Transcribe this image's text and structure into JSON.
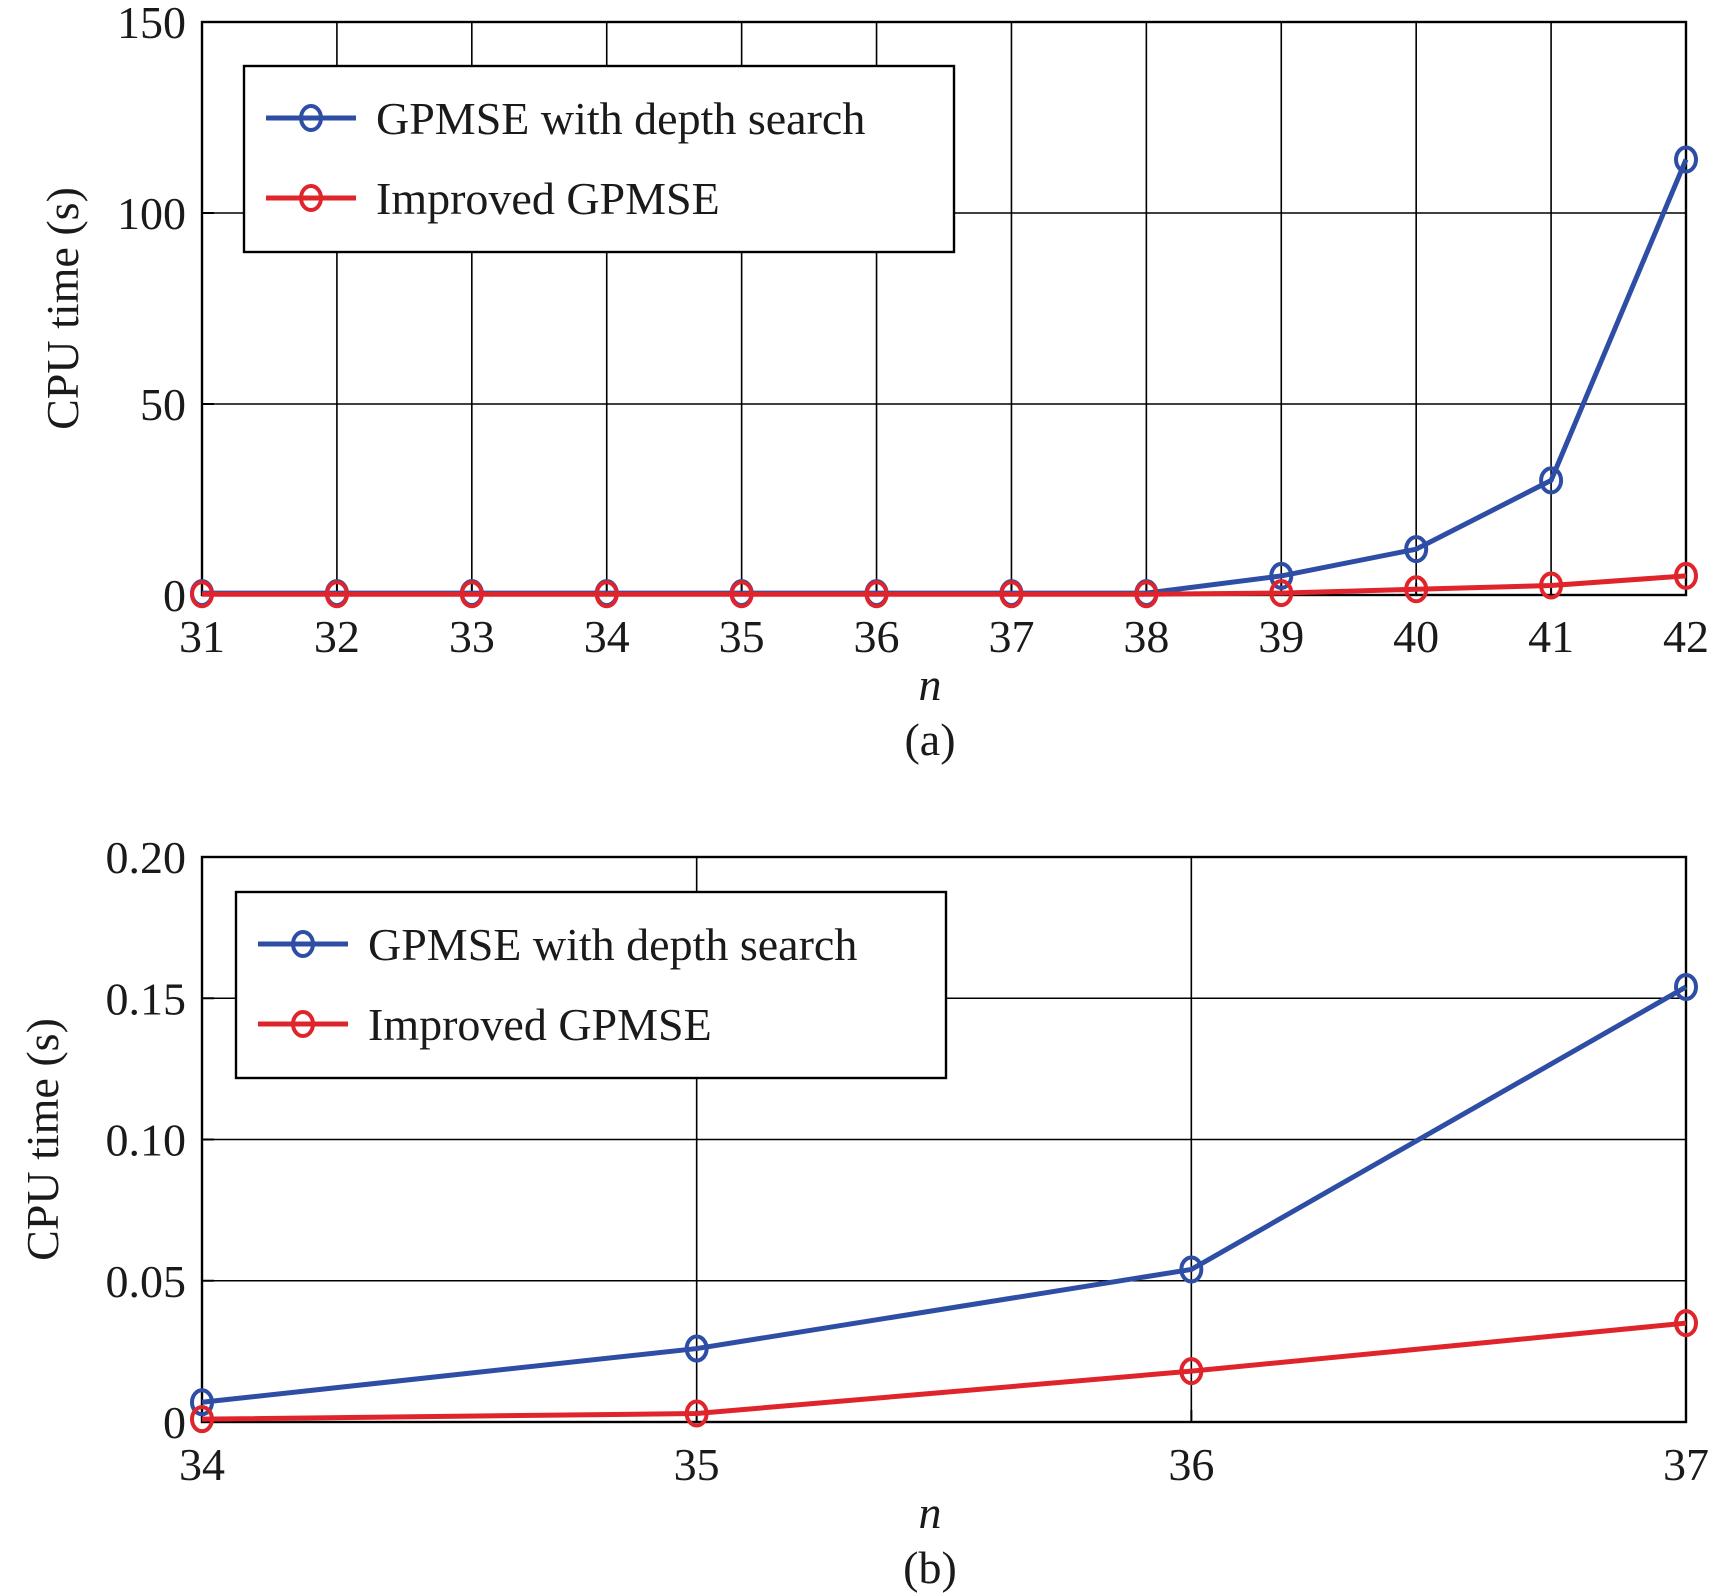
{
  "colors": {
    "series1": "#2e4ea6",
    "series2": "#e0242b",
    "grid": "#000000"
  },
  "chart_data": [
    {
      "type": "line",
      "caption": "(a)",
      "xlabel": "n",
      "ylabel": "CPU time (s)",
      "x": [
        31,
        32,
        33,
        34,
        35,
        36,
        37,
        38,
        39,
        40,
        41,
        42
      ],
      "xlim": [
        31,
        42
      ],
      "ylim": [
        0,
        150
      ],
      "xticks": [
        "31",
        "32",
        "33",
        "34",
        "35",
        "36",
        "37",
        "38",
        "39",
        "40",
        "41",
        "42"
      ],
      "yticks": [
        0,
        50,
        100,
        150
      ],
      "ytick_labels": [
        "0",
        "50",
        "100",
        "150"
      ],
      "grid": true,
      "legend_position": "top-left",
      "series": [
        {
          "name": "GPMSE with depth search",
          "color": "#2e4ea6",
          "values": [
            0.5,
            0.5,
            0.5,
            0.5,
            0.5,
            0.5,
            0.5,
            0.5,
            5,
            12,
            30,
            114
          ]
        },
        {
          "name": "Improved GPMSE",
          "color": "#e0242b",
          "values": [
            0.2,
            0.2,
            0.2,
            0.2,
            0.2,
            0.2,
            0.2,
            0.2,
            0.5,
            1.5,
            2.5,
            5
          ]
        }
      ]
    },
    {
      "type": "line",
      "caption": "(b)",
      "xlabel": "n",
      "ylabel": "CPU time (s)",
      "x": [
        34,
        35,
        36,
        37
      ],
      "xlim": [
        34,
        37
      ],
      "ylim": [
        0,
        0.2
      ],
      "xticks": [
        "34",
        "35",
        "36",
        "37"
      ],
      "yticks": [
        0,
        0.05,
        0.1,
        0.15,
        0.2
      ],
      "ytick_labels": [
        "0",
        "0.05",
        "0.10",
        "0.15",
        "0.20"
      ],
      "grid": true,
      "legend_position": "top-left",
      "series": [
        {
          "name": "GPMSE with depth search",
          "color": "#2e4ea6",
          "values": [
            0.007,
            0.026,
            0.054,
            0.154
          ]
        },
        {
          "name": "Improved GPMSE",
          "color": "#e0242b",
          "values": [
            0.001,
            0.003,
            0.018,
            0.035
          ]
        }
      ]
    }
  ]
}
